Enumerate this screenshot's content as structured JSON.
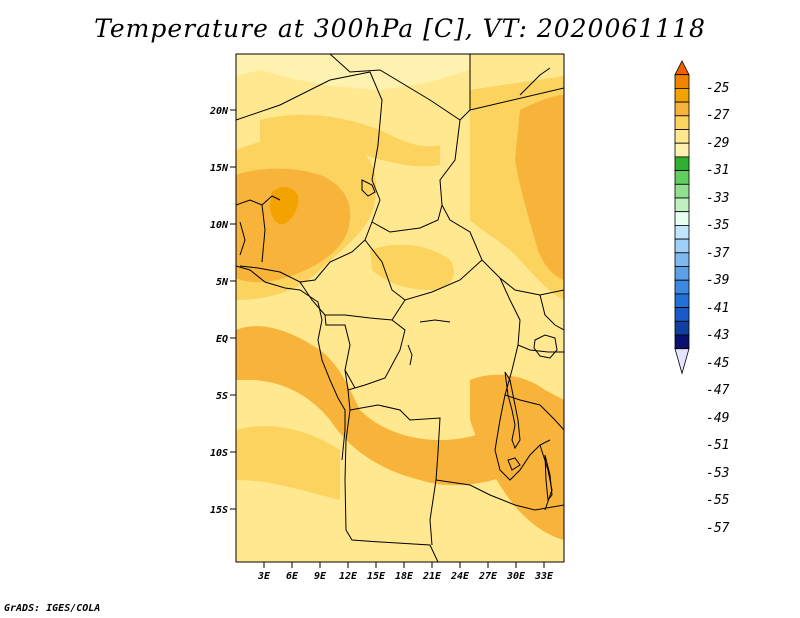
{
  "title": "Temperature at 300hPa [C], VT: 2020061118",
  "credit": "GrADS: IGES/COLA",
  "lat_labels": [
    "20N",
    "15N",
    "10N",
    "5N",
    "EQ",
    "5S",
    "10S",
    "15S"
  ],
  "lon_labels": [
    "3E",
    "6E",
    "9E",
    "12E",
    "15E",
    "18E",
    "21E",
    "24E",
    "27E",
    "30E",
    "33E"
  ],
  "colorbar": {
    "labels": [
      "-25",
      "-27",
      "-29",
      "-31",
      "-33",
      "-35",
      "-37",
      "-39",
      "-41",
      "-43",
      "-45",
      "-47",
      "-49",
      "-51",
      "-53",
      "-55",
      "-57"
    ],
    "colors": [
      "#f06000",
      "#f08400",
      "#f2a300",
      "#f8b43a",
      "#fbd35e",
      "#ffe890",
      "#fff2b0",
      "#30b030",
      "#60cf60",
      "#90e090",
      "#c0f0c0",
      "#e6fff0",
      "#c0e6ff",
      "#a0d0f8",
      "#80b8f0",
      "#5ca0e8",
      "#3c88e0",
      "#2070d6",
      "#1a5ac8",
      "#1040a0",
      "#0a1070",
      "#e4e4ff"
    ]
  },
  "map_colors": {
    "base": "#ffe890",
    "light": "#fff2b0",
    "warm": "#fbd35e",
    "warmer": "#f8b43a",
    "hot": "#f2a300"
  }
}
